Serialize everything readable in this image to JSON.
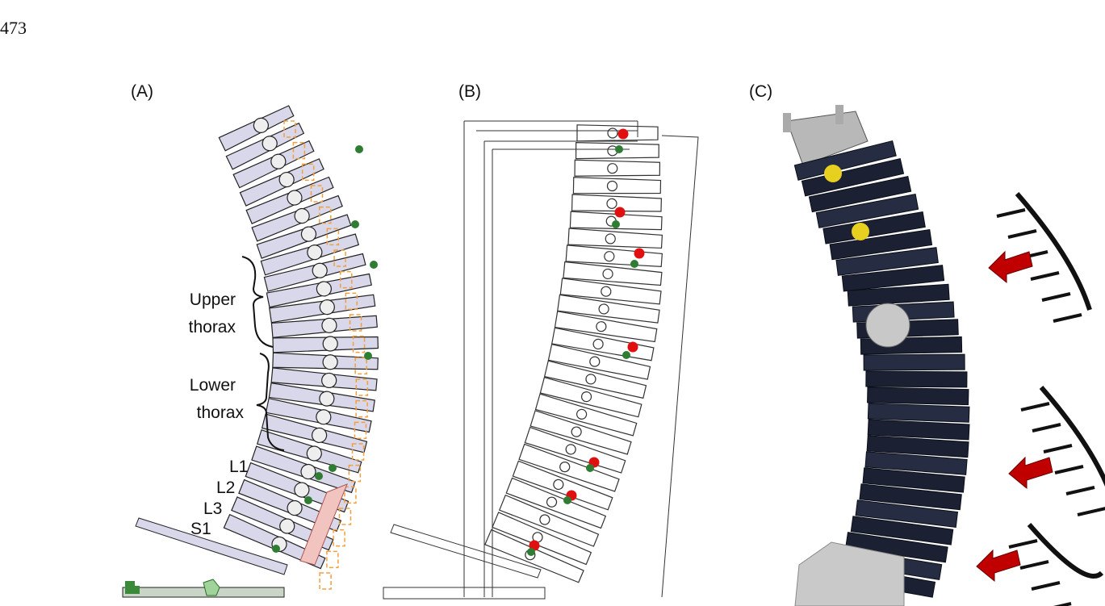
{
  "page_number": "473",
  "panels": [
    {
      "label": "(A)",
      "annotations": [
        "Upper",
        "thorax",
        "Lower",
        "thorax",
        "L1",
        "L2",
        "L3",
        "S1"
      ]
    },
    {
      "label": "(B)"
    },
    {
      "label": "(C)"
    }
  ]
}
